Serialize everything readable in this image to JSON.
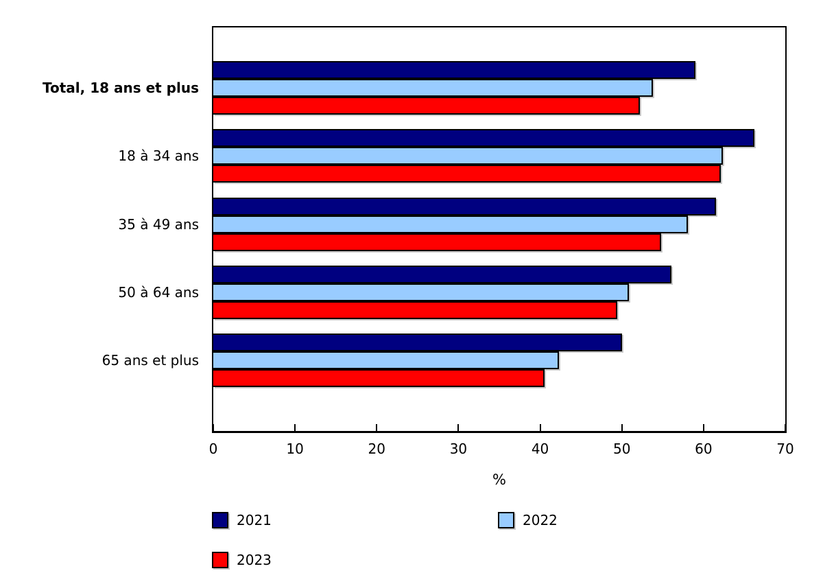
{
  "chart_data": {
    "type": "bar",
    "orientation": "horizontal",
    "title": "",
    "categories": [
      "Total, 18 ans et plus",
      "18 à 34 ans",
      "35 à 49 ans",
      "50 à 64 ans",
      "65 ans et plus"
    ],
    "categories_bold": [
      true,
      false,
      false,
      false,
      false
    ],
    "series": [
      {
        "name": "2021",
        "color": "#000080",
        "values": [
          59.0,
          66.2,
          61.5,
          56.1,
          50.0
        ]
      },
      {
        "name": "2022",
        "color": "#99CCFF",
        "values": [
          53.8,
          62.4,
          58.1,
          50.9,
          42.3
        ]
      },
      {
        "name": "2023",
        "color": "#FF0000",
        "values": [
          52.2,
          62.1,
          54.8,
          49.4,
          40.5
        ]
      }
    ],
    "xlabel": "%",
    "xlim": [
      0,
      70
    ],
    "xticks": [
      0,
      10,
      20,
      30,
      40,
      50,
      60,
      70
    ],
    "grid": false,
    "legend_position": "bottom",
    "plot_border_color": "#000000",
    "bar_outline_color": "#000000"
  }
}
